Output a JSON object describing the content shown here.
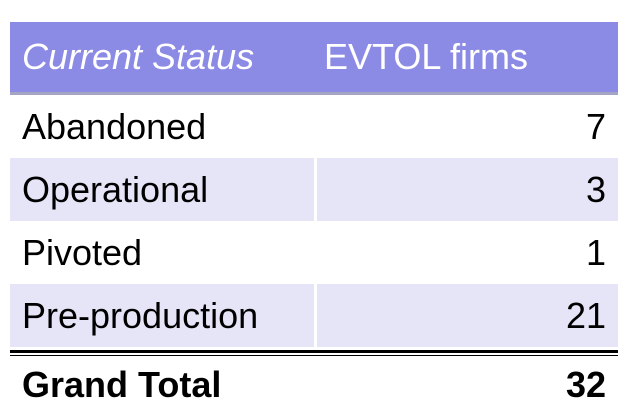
{
  "table": {
    "header": [
      "Current Status",
      "EVTOL firms"
    ],
    "rows": [
      [
        "Abandoned",
        7
      ],
      [
        "Operational",
        3
      ],
      [
        "Pivoted",
        1
      ],
      [
        "Pre-production",
        21
      ]
    ],
    "total": [
      "Grand Total",
      32
    ]
  }
}
